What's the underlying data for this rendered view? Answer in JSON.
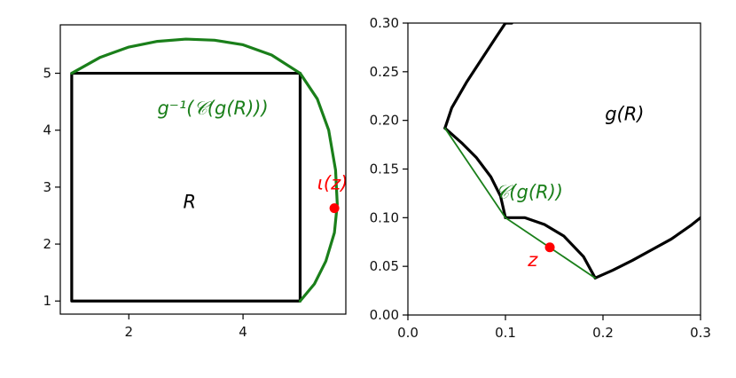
{
  "chart_data": [
    {
      "type": "line",
      "xlim": [
        0.8,
        5.8
      ],
      "ylim": [
        0.77,
        5.85
      ],
      "x_ticks": [
        "2",
        "4"
      ],
      "y_ticks": [
        "1",
        "2",
        "3",
        "4",
        "5"
      ],
      "grid": false,
      "colors": {
        "square": "#000000",
        "curve": "#1a7f1a",
        "point": "#ff0000"
      },
      "series": [
        {
          "x": [
            1,
            5,
            5,
            1,
            1
          ],
          "y": [
            1,
            1,
            5,
            5,
            1
          ]
        },
        {
          "x": [
            1,
            1.5,
            2,
            2.5,
            3,
            3.5,
            4,
            4.5,
            5,
            5.3,
            5.5,
            5.62,
            5.65,
            5.6,
            5.45,
            5.25,
            5.0
          ],
          "y": [
            5,
            5.28,
            5.46,
            5.56,
            5.6,
            5.58,
            5.5,
            5.32,
            5,
            4.55,
            4.0,
            3.3,
            2.7,
            2.2,
            1.7,
            1.3,
            1
          ]
        }
      ],
      "point": {
        "x": 5.6,
        "y": 2.63
      },
      "annotations": [
        {
          "text": "R",
          "x": 2.95,
          "y": 2.63,
          "color": "#000000"
        },
        {
          "text": "g⁻¹(𝒞(g(R)))",
          "x": 2.5,
          "y": 4.28,
          "color": "#1a7f1a"
        },
        {
          "text": "ι(z)",
          "x": 5.3,
          "y": 2.96,
          "color": "#ff0000"
        }
      ]
    },
    {
      "type": "line",
      "xlim": [
        0.0,
        0.3
      ],
      "ylim": [
        0.0,
        0.3
      ],
      "x_ticks": [
        "0.0",
        "0.1",
        "0.2",
        "0.3"
      ],
      "y_ticks": [
        "0.00",
        "0.05",
        "0.10",
        "0.15",
        "0.20",
        "0.25",
        "0.30"
      ],
      "grid": false,
      "colors": {
        "curve": "#000000",
        "polygon": "#1a7f1a",
        "point": "#ff0000"
      },
      "series": [
        {
          "x": [
            0.038,
            0.045,
            0.06,
            0.075,
            0.09,
            0.1,
            0.1065
          ],
          "y": [
            0.192,
            0.213,
            0.239,
            0.262,
            0.285,
            0.3,
            0.3
          ]
        },
        {
          "x": [
            0.038,
            0.055,
            0.07,
            0.085,
            0.095,
            0.1
          ],
          "y": [
            0.192,
            0.177,
            0.162,
            0.142,
            0.122,
            0.1
          ]
        },
        {
          "x": [
            0.1,
            0.12,
            0.14,
            0.16,
            0.18,
            0.192
          ],
          "y": [
            0.1,
            0.1,
            0.093,
            0.081,
            0.06,
            0.038
          ]
        },
        {
          "x": [
            0.192,
            0.21,
            0.23,
            0.25,
            0.27,
            0.29,
            0.3
          ],
          "y": [
            0.038,
            0.046,
            0.056,
            0.067,
            0.078,
            0.092,
            0.1
          ]
        },
        {
          "x": [
            0.038,
            0.1,
            0.192
          ],
          "y": [
            0.192,
            0.1,
            0.038
          ]
        }
      ],
      "point": {
        "x": 0.1455,
        "y": 0.0695
      },
      "annotations": [
        {
          "text": "g(R)",
          "x": 0.202,
          "y": 0.2,
          "color": "#000000"
        },
        {
          "text": "𝒞(g(R))",
          "x": 0.09,
          "y": 0.12,
          "color": "#1a7f1a"
        },
        {
          "text": "z",
          "x": 0.123,
          "y": 0.05,
          "color": "#ff0000"
        }
      ]
    }
  ]
}
